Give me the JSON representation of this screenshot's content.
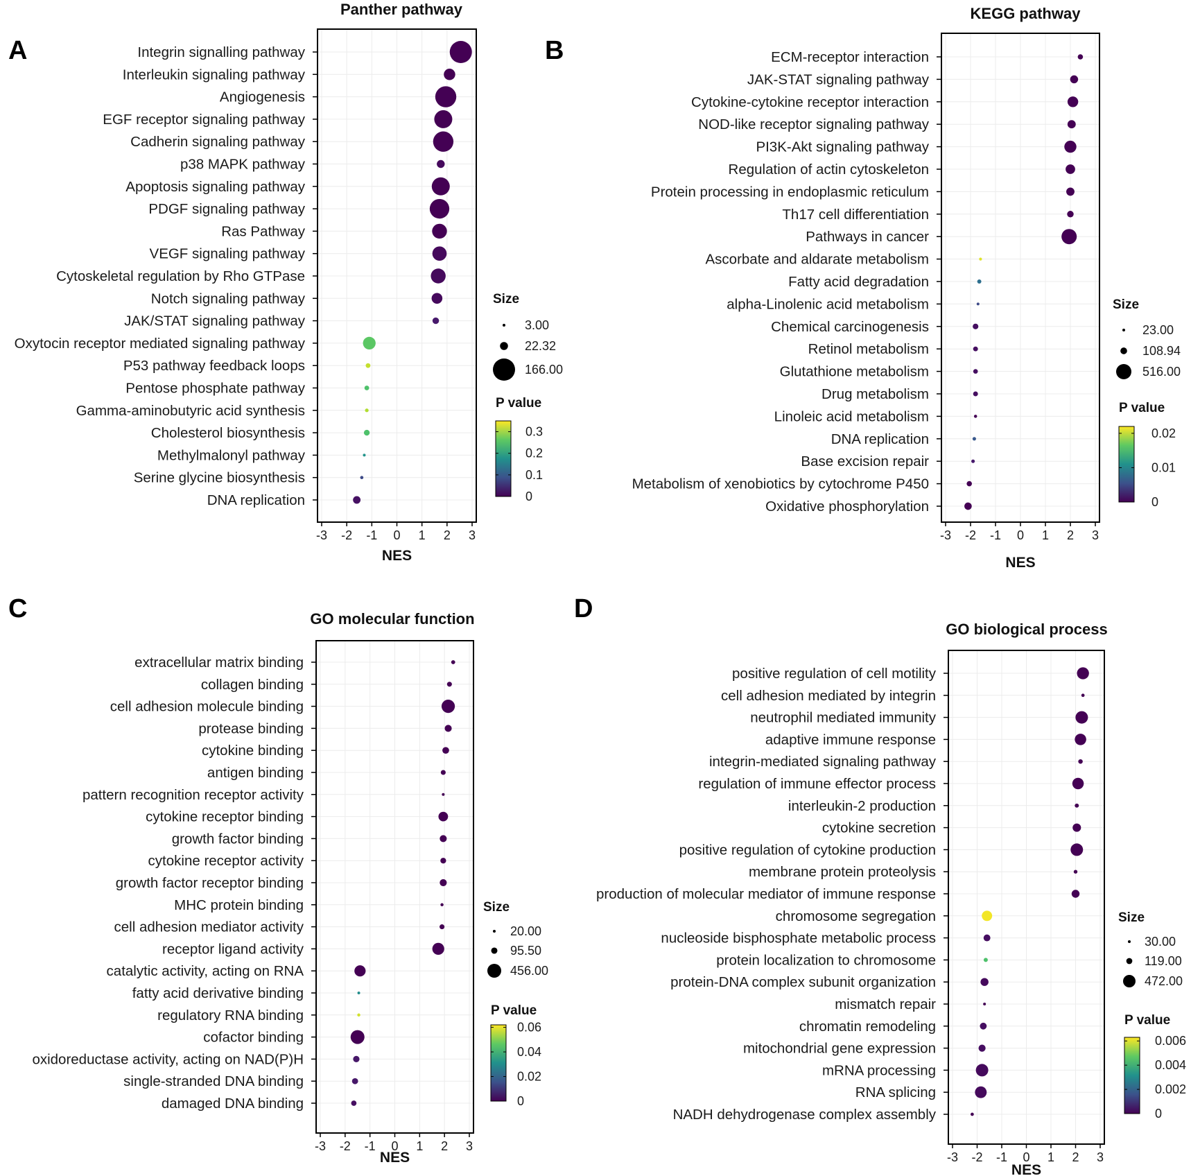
{
  "figure": {
    "colors": {
      "viridis_low": "#440154",
      "viridis_mid": "#21918c",
      "viridis_high": "#fde725",
      "grid": "#ececec",
      "frame": "#000000"
    }
  },
  "chart_data": [
    {
      "panel": "A",
      "type": "scatter",
      "title": "Panther pathway",
      "xlabel": "NES",
      "xlim": [
        -3,
        3
      ],
      "xticks": [
        "-3",
        "-2",
        "-1",
        "0",
        "1",
        "2",
        "3"
      ],
      "size_legend": {
        "title": "Size",
        "labels": [
          "3.00",
          "22.32",
          "166.00"
        ],
        "values": [
          3,
          22.32,
          166
        ]
      },
      "p_legend": {
        "title": "P value",
        "ticks": [
          "0.3",
          "0.2",
          "0.1",
          "0"
        ],
        "values": [
          0.3,
          0.2,
          0.1,
          0
        ],
        "max": 0.35
      },
      "points": [
        {
          "term": "Integrin signalling pathway",
          "nes": 2.55,
          "size": 166,
          "p": 0.0
        },
        {
          "term": "Interleukin signaling pathway",
          "nes": 2.1,
          "size": 45,
          "p": 0.0
        },
        {
          "term": "Angiogenesis",
          "nes": 1.95,
          "size": 150,
          "p": 0.0
        },
        {
          "term": "EGF receptor signaling pathway",
          "nes": 1.85,
          "size": 110,
          "p": 0.0
        },
        {
          "term": "Cadherin signaling pathway",
          "nes": 1.85,
          "size": 140,
          "p": 0.0
        },
        {
          "term": "p38 MAPK pathway",
          "nes": 1.75,
          "size": 22,
          "p": 0.01
        },
        {
          "term": "Apoptosis signaling pathway",
          "nes": 1.75,
          "size": 110,
          "p": 0.0
        },
        {
          "term": "PDGF signaling pathway",
          "nes": 1.7,
          "size": 130,
          "p": 0.0
        },
        {
          "term": "Ras Pathway",
          "nes": 1.7,
          "size": 75,
          "p": 0.0
        },
        {
          "term": "VEGF signaling pathway",
          "nes": 1.7,
          "size": 70,
          "p": 0.01
        },
        {
          "term": "Cytoskeletal regulation by Rho GTPase",
          "nes": 1.65,
          "size": 75,
          "p": 0.01
        },
        {
          "term": "Notch signaling pathway",
          "nes": 1.6,
          "size": 40,
          "p": 0.01
        },
        {
          "term": "JAK/STAT signaling pathway",
          "nes": 1.55,
          "size": 15,
          "p": 0.03
        },
        {
          "term": "Oxytocin receptor mediated signaling pathway",
          "nes": -1.1,
          "size": 55,
          "p": 0.26
        },
        {
          "term": "P53 pathway feedback loops",
          "nes": -1.15,
          "size": 8,
          "p": 0.32
        },
        {
          "term": "Pentose phosphate pathway",
          "nes": -1.2,
          "size": 8,
          "p": 0.25
        },
        {
          "term": "Gamma-aminobutyric acid synthesis",
          "nes": -1.2,
          "size": 5,
          "p": 0.31
        },
        {
          "term": "Cholesterol biosynthesis",
          "nes": -1.2,
          "size": 12,
          "p": 0.25
        },
        {
          "term": "Methylmalonyl pathway",
          "nes": -1.3,
          "size": 3,
          "p": 0.18
        },
        {
          "term": "Serine glycine biosynthesis",
          "nes": -1.4,
          "size": 4,
          "p": 0.08
        },
        {
          "term": "DNA replication",
          "nes": -1.6,
          "size": 20,
          "p": 0.02
        }
      ]
    },
    {
      "panel": "B",
      "type": "scatter",
      "title": "KEGG pathway",
      "xlabel": "NES",
      "xlim": [
        -3,
        3
      ],
      "xticks": [
        "-3",
        "-2",
        "-1",
        "0",
        "1",
        "2",
        "3"
      ],
      "size_legend": {
        "title": "Size",
        "labels": [
          "23.00",
          "108.94",
          "516.00"
        ],
        "values": [
          23,
          108.94,
          516
        ]
      },
      "p_legend": {
        "title": "P value",
        "ticks": [
          "0.02",
          "0.01",
          "0"
        ],
        "values": [
          0.02,
          0.01,
          0
        ],
        "max": 0.022
      },
      "points": [
        {
          "term": "ECM-receptor interaction",
          "nes": 2.4,
          "size": 70,
          "p": 0.0
        },
        {
          "term": "JAK-STAT signaling pathway",
          "nes": 2.15,
          "size": 150,
          "p": 0.0
        },
        {
          "term": "Cytokine-cytokine receptor interaction",
          "nes": 2.1,
          "size": 260,
          "p": 0.0
        },
        {
          "term": "NOD-like receptor signaling pathway",
          "nes": 2.05,
          "size": 160,
          "p": 0.0
        },
        {
          "term": "PI3K-Akt signaling pathway",
          "nes": 2.0,
          "size": 330,
          "p": 0.0
        },
        {
          "term": "Regulation of actin cytoskeleton",
          "nes": 2.0,
          "size": 210,
          "p": 0.0
        },
        {
          "term": "Protein processing in endoplasmic reticulum",
          "nes": 2.0,
          "size": 160,
          "p": 0.0
        },
        {
          "term": "Th17 cell differentiation",
          "nes": 2.0,
          "size": 105,
          "p": 0.0
        },
        {
          "term": "Pathways in cancer",
          "nes": 1.95,
          "size": 516,
          "p": 0.0
        },
        {
          "term": "Ascorbate and aldarate metabolism",
          "nes": -1.6,
          "size": 25,
          "p": 0.021
        },
        {
          "term": "Fatty acid degradation",
          "nes": -1.65,
          "size": 45,
          "p": 0.008
        },
        {
          "term": "alpha-Linolenic acid metabolism",
          "nes": -1.7,
          "size": 23,
          "p": 0.005
        },
        {
          "term": "Chemical carcinogenesis",
          "nes": -1.8,
          "size": 80,
          "p": 0.001
        },
        {
          "term": "Retinol metabolism",
          "nes": -1.8,
          "size": 60,
          "p": 0.001
        },
        {
          "term": "Glutathione metabolism",
          "nes": -1.8,
          "size": 55,
          "p": 0.001
        },
        {
          "term": "Drug metabolism",
          "nes": -1.8,
          "size": 60,
          "p": 0.001
        },
        {
          "term": "Linoleic acid metabolism",
          "nes": -1.8,
          "size": 28,
          "p": 0.0
        },
        {
          "term": "DNA replication",
          "nes": -1.85,
          "size": 35,
          "p": 0.006
        },
        {
          "term": "Base excision repair",
          "nes": -1.9,
          "size": 35,
          "p": 0.002
        },
        {
          "term": "Metabolism of xenobiotics by cytochrome P450",
          "nes": -2.05,
          "size": 70,
          "p": 0.0
        },
        {
          "term": "Oxidative phosphorylation",
          "nes": -2.1,
          "size": 130,
          "p": 0.0
        }
      ]
    },
    {
      "panel": "C",
      "type": "scatter",
      "title": "GO molecular function",
      "xlabel": "NES",
      "xlim": [
        -3,
        3
      ],
      "xticks": [
        "-3",
        "-2",
        "-1",
        "0",
        "1",
        "2",
        "3"
      ],
      "size_legend": {
        "title": "Size",
        "labels": [
          "20.00",
          "95.50",
          "456.00"
        ],
        "values": [
          20,
          95.5,
          456
        ]
      },
      "p_legend": {
        "title": "P value",
        "ticks": [
          "0.06",
          "0.04",
          "0.02",
          "0"
        ],
        "values": [
          0.06,
          0.04,
          0.02,
          0
        ],
        "max": 0.062
      },
      "points": [
        {
          "term": "extracellular matrix binding",
          "nes": 2.35,
          "size": 40,
          "p": 0.0
        },
        {
          "term": "collagen binding",
          "nes": 2.2,
          "size": 60,
          "p": 0.0
        },
        {
          "term": "cell adhesion molecule binding",
          "nes": 2.15,
          "size": 420,
          "p": 0.0
        },
        {
          "term": "protease binding",
          "nes": 2.15,
          "size": 120,
          "p": 0.0
        },
        {
          "term": "cytokine binding",
          "nes": 2.05,
          "size": 110,
          "p": 0.0
        },
        {
          "term": "antigen binding",
          "nes": 1.95,
          "size": 60,
          "p": 0.0
        },
        {
          "term": "pattern recognition receptor activity",
          "nes": 1.95,
          "size": 20,
          "p": 0.0
        },
        {
          "term": "cytokine receptor binding",
          "nes": 1.95,
          "size": 220,
          "p": 0.0
        },
        {
          "term": "growth factor binding",
          "nes": 1.95,
          "size": 120,
          "p": 0.0
        },
        {
          "term": "cytokine receptor activity",
          "nes": 1.95,
          "size": 80,
          "p": 0.0
        },
        {
          "term": "growth factor receptor binding",
          "nes": 1.95,
          "size": 120,
          "p": 0.0
        },
        {
          "term": "MHC protein binding",
          "nes": 1.9,
          "size": 25,
          "p": 0.0
        },
        {
          "term": "cell adhesion mediator activity",
          "nes": 1.9,
          "size": 60,
          "p": 0.0
        },
        {
          "term": "receptor ligand activity",
          "nes": 1.75,
          "size": 340,
          "p": 0.0
        },
        {
          "term": "catalytic activity, acting on RNA",
          "nes": -1.4,
          "size": 300,
          "p": 0.0
        },
        {
          "term": "fatty acid derivative binding",
          "nes": -1.45,
          "size": 20,
          "p": 0.03
        },
        {
          "term": "regulatory RNA binding",
          "nes": -1.45,
          "size": 25,
          "p": 0.058
        },
        {
          "term": "cofactor binding",
          "nes": -1.5,
          "size": 456,
          "p": 0.0
        },
        {
          "term": "oxidoreductase activity, acting on NAD(P)H",
          "nes": -1.55,
          "size": 100,
          "p": 0.005
        },
        {
          "term": "single-stranded DNA binding",
          "nes": -1.6,
          "size": 90,
          "p": 0.005
        },
        {
          "term": "damaged DNA binding",
          "nes": -1.65,
          "size": 70,
          "p": 0.003
        }
      ]
    },
    {
      "panel": "D",
      "type": "scatter",
      "title": "GO biological process",
      "xlabel": "NES",
      "xlim": [
        -3,
        3
      ],
      "xticks": [
        "-3",
        "-2",
        "-1",
        "0",
        "1",
        "2",
        "3"
      ],
      "size_legend": {
        "title": "Size",
        "labels": [
          "30.00",
          "119.00",
          "472.00"
        ],
        "values": [
          30,
          119,
          472
        ]
      },
      "p_legend": {
        "title": "P value",
        "ticks": [
          "0.006",
          "0.004",
          "0.002",
          "0"
        ],
        "values": [
          0.006,
          0.004,
          0.002,
          0
        ],
        "max": 0.0063
      },
      "points": [
        {
          "term": "positive regulation of cell motility",
          "nes": 2.3,
          "size": 440,
          "p": 0.0
        },
        {
          "term": "cell adhesion mediated by integrin",
          "nes": 2.3,
          "size": 40,
          "p": 0.0
        },
        {
          "term": "neutrophil mediated immunity",
          "nes": 2.25,
          "size": 472,
          "p": 0.0
        },
        {
          "term": "adaptive immune response",
          "nes": 2.2,
          "size": 400,
          "p": 0.0
        },
        {
          "term": "integrin-mediated signaling pathway",
          "nes": 2.2,
          "size": 70,
          "p": 0.0
        },
        {
          "term": "regulation of immune effector process",
          "nes": 2.1,
          "size": 400,
          "p": 0.0
        },
        {
          "term": "interleukin-2 production",
          "nes": 2.05,
          "size": 60,
          "p": 0.0
        },
        {
          "term": "cytokine secretion",
          "nes": 2.05,
          "size": 220,
          "p": 0.0
        },
        {
          "term": "positive regulation of cytokine production",
          "nes": 2.05,
          "size": 470,
          "p": 0.0
        },
        {
          "term": "membrane protein proteolysis",
          "nes": 2.0,
          "size": 50,
          "p": 0.0
        },
        {
          "term": "production of molecular mediator of immune response",
          "nes": 2.0,
          "size": 200,
          "p": 0.0
        },
        {
          "term": "chromosome segregation",
          "nes": -1.6,
          "size": 330,
          "p": 0.0062
        },
        {
          "term": "nucleoside bisphosphate metabolic process",
          "nes": -1.6,
          "size": 150,
          "p": 0.0003
        },
        {
          "term": "protein localization to chromosome",
          "nes": -1.65,
          "size": 60,
          "p": 0.0045
        },
        {
          "term": "protein-DNA complex subunit organization",
          "nes": -1.7,
          "size": 200,
          "p": 0.0002
        },
        {
          "term": "mismatch repair",
          "nes": -1.7,
          "size": 30,
          "p": 0.0
        },
        {
          "term": "chromatin remodeling",
          "nes": -1.75,
          "size": 150,
          "p": 0.0003
        },
        {
          "term": "mitochondrial gene expression",
          "nes": -1.8,
          "size": 160,
          "p": 0.0003
        },
        {
          "term": "mRNA processing",
          "nes": -1.8,
          "size": 470,
          "p": 0.0002
        },
        {
          "term": "RNA splicing",
          "nes": -1.85,
          "size": 420,
          "p": 0.0002
        },
        {
          "term": "NADH dehydrogenase complex assembly",
          "nes": -2.2,
          "size": 40,
          "p": 0.0
        }
      ]
    }
  ]
}
